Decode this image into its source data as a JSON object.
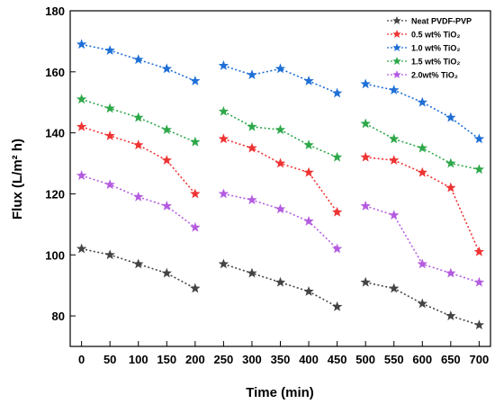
{
  "chart_data": {
    "type": "line",
    "xlabel": "Time (min)",
    "ylabel": "Flux (L/m² h)",
    "xlim": [
      -20,
      720
    ],
    "ylim": [
      70,
      180
    ],
    "xticks": [
      0,
      50,
      100,
      150,
      200,
      250,
      300,
      350,
      400,
      450,
      500,
      550,
      600,
      650,
      700
    ],
    "yticks": [
      80,
      100,
      120,
      140,
      160,
      180
    ],
    "legend_position": "top-right",
    "line_style": "dotted",
    "marker": "star",
    "segments": [
      [
        0,
        50,
        100,
        150,
        200
      ],
      [
        250,
        300,
        350,
        400,
        450
      ],
      [
        500,
        550,
        600,
        650,
        700
      ]
    ],
    "series": [
      {
        "name": "Neat PVDF-PVP",
        "color": "#444444",
        "x": [
          0,
          50,
          100,
          150,
          200,
          250,
          300,
          350,
          400,
          450,
          500,
          550,
          600,
          650,
          700
        ],
        "values": [
          102,
          100,
          97,
          94,
          89,
          97,
          94,
          91,
          88,
          83,
          91,
          89,
          84,
          80,
          77
        ]
      },
      {
        "name": "0.5 wt% TiO₂",
        "color": "#ee3333",
        "x": [
          0,
          50,
          100,
          150,
          200,
          250,
          300,
          350,
          400,
          450,
          500,
          550,
          600,
          650,
          700
        ],
        "values": [
          142,
          139,
          136,
          131,
          120,
          138,
          135,
          130,
          127,
          114,
          132,
          131,
          127,
          122,
          101
        ]
      },
      {
        "name": "1.0 wt% TiO₂",
        "color": "#1f6fd6",
        "x": [
          0,
          50,
          100,
          150,
          200,
          250,
          300,
          350,
          400,
          450,
          500,
          550,
          600,
          650,
          700
        ],
        "values": [
          169,
          167,
          164,
          161,
          157,
          162,
          159,
          161,
          157,
          153,
          156,
          154,
          150,
          145,
          138
        ]
      },
      {
        "name": "1.5 wt% TiO₂",
        "color": "#2ea84a",
        "x": [
          0,
          50,
          100,
          150,
          200,
          250,
          300,
          350,
          400,
          450,
          500,
          550,
          600,
          650,
          700
        ],
        "values": [
          151,
          148,
          145,
          141,
          137,
          147,
          142,
          141,
          136,
          132,
          143,
          138,
          135,
          130,
          128
        ]
      },
      {
        "name": "2.0wt% TiO₂",
        "color": "#b45ce0",
        "x": [
          0,
          50,
          100,
          150,
          200,
          250,
          300,
          350,
          400,
          450,
          500,
          550,
          600,
          650,
          700
        ],
        "values": [
          126,
          123,
          119,
          116,
          109,
          120,
          118,
          115,
          111,
          102,
          116,
          113,
          97,
          94,
          91
        ]
      }
    ]
  }
}
